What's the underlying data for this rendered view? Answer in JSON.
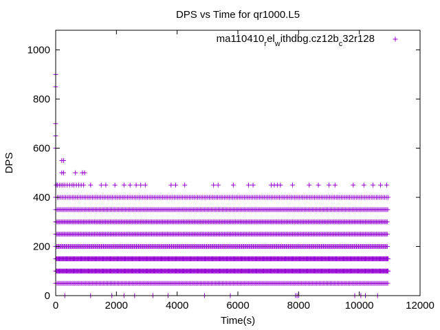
{
  "chart_data": {
    "type": "scatter",
    "title": "DPS vs Time for qr1000.L5",
    "xlabel": "Time(s)",
    "ylabel": "DPS",
    "xlim": [
      0,
      12000
    ],
    "ylim": [
      0,
      1080
    ],
    "x_ticks": [
      0,
      2000,
      4000,
      6000,
      8000,
      10000,
      12000
    ],
    "y_ticks": [
      0,
      200,
      400,
      600,
      800,
      1000
    ],
    "grid": false,
    "legend_position": "top-right",
    "marker": "+",
    "series": [
      {
        "name_parts": [
          {
            "text": "ma110410",
            "sub": false
          },
          {
            "text": "r",
            "sub": true
          },
          {
            "text": "el",
            "sub": false
          },
          {
            "text": "w",
            "sub": true
          },
          {
            "text": "ithdbg.cz12b",
            "sub": false
          },
          {
            "text": "c",
            "sub": true
          },
          {
            "text": "32r128",
            "sub": false
          }
        ],
        "color": "#9400d3",
        "dense_bands": [
          {
            "y": 50,
            "x_start": 0,
            "x_end": 10950,
            "step": 45
          },
          {
            "y": 100,
            "x_start": 0,
            "x_end": 10950,
            "step": 25
          },
          {
            "y": 150,
            "x_start": 0,
            "x_end": 10950,
            "step": 25
          },
          {
            "y": 200,
            "x_start": 0,
            "x_end": 10950,
            "step": 35
          },
          {
            "y": 250,
            "x_start": 0,
            "x_end": 10950,
            "step": 40
          },
          {
            "y": 300,
            "x_start": 0,
            "x_end": 10950,
            "step": 40
          },
          {
            "y": 350,
            "x_start": 0,
            "x_end": 10950,
            "step": 45
          },
          {
            "y": 400,
            "x_start": 0,
            "x_end": 10950,
            "step": 55
          }
        ],
        "points": [
          {
            "x": 20,
            "y": 450
          },
          {
            "x": 60,
            "y": 450
          },
          {
            "x": 120,
            "y": 450
          },
          {
            "x": 180,
            "y": 450
          },
          {
            "x": 240,
            "y": 450
          },
          {
            "x": 300,
            "y": 450
          },
          {
            "x": 380,
            "y": 450
          },
          {
            "x": 460,
            "y": 450
          },
          {
            "x": 540,
            "y": 450
          },
          {
            "x": 600,
            "y": 450
          },
          {
            "x": 680,
            "y": 450
          },
          {
            "x": 760,
            "y": 450
          },
          {
            "x": 840,
            "y": 450
          },
          {
            "x": 920,
            "y": 450
          },
          {
            "x": 1150,
            "y": 450
          },
          {
            "x": 1500,
            "y": 450
          },
          {
            "x": 1650,
            "y": 450
          },
          {
            "x": 1950,
            "y": 450
          },
          {
            "x": 2250,
            "y": 450
          },
          {
            "x": 2450,
            "y": 450
          },
          {
            "x": 2650,
            "y": 450
          },
          {
            "x": 2800,
            "y": 450
          },
          {
            "x": 2950,
            "y": 450
          },
          {
            "x": 3800,
            "y": 450
          },
          {
            "x": 3950,
            "y": 450
          },
          {
            "x": 4250,
            "y": 450
          },
          {
            "x": 5200,
            "y": 450
          },
          {
            "x": 5350,
            "y": 450
          },
          {
            "x": 5850,
            "y": 450
          },
          {
            "x": 6350,
            "y": 450
          },
          {
            "x": 6500,
            "y": 450
          },
          {
            "x": 7100,
            "y": 450
          },
          {
            "x": 7200,
            "y": 450
          },
          {
            "x": 7300,
            "y": 450
          },
          {
            "x": 7400,
            "y": 450
          },
          {
            "x": 7800,
            "y": 450
          },
          {
            "x": 8350,
            "y": 450
          },
          {
            "x": 8650,
            "y": 450
          },
          {
            "x": 9000,
            "y": 450
          },
          {
            "x": 9200,
            "y": 450
          },
          {
            "x": 9800,
            "y": 450
          },
          {
            "x": 10150,
            "y": 450
          },
          {
            "x": 10450,
            "y": 450
          },
          {
            "x": 10700,
            "y": 450
          },
          {
            "x": 10900,
            "y": 450
          },
          {
            "x": 200,
            "y": 500
          },
          {
            "x": 260,
            "y": 500
          },
          {
            "x": 650,
            "y": 500
          },
          {
            "x": 880,
            "y": 500
          },
          {
            "x": 950,
            "y": 500
          },
          {
            "x": 200,
            "y": 550
          },
          {
            "x": 260,
            "y": 550
          },
          {
            "x": 0,
            "y": 600
          },
          {
            "x": 0,
            "y": 650
          },
          {
            "x": 0,
            "y": 700
          },
          {
            "x": 0,
            "y": 850
          },
          {
            "x": 0,
            "y": 900
          },
          {
            "x": 300,
            "y": 0
          },
          {
            "x": 1150,
            "y": 0
          },
          {
            "x": 1850,
            "y": 0
          },
          {
            "x": 2250,
            "y": 0
          },
          {
            "x": 2600,
            "y": 0
          },
          {
            "x": 3200,
            "y": 0
          },
          {
            "x": 3700,
            "y": 0
          },
          {
            "x": 4900,
            "y": 0
          },
          {
            "x": 5750,
            "y": 0
          },
          {
            "x": 7900,
            "y": 0
          },
          {
            "x": 7950,
            "y": 0
          },
          {
            "x": 8000,
            "y": 0
          },
          {
            "x": 9850,
            "y": 0
          },
          {
            "x": 10050,
            "y": 0
          },
          {
            "x": 10200,
            "y": 0
          },
          {
            "x": 10600,
            "y": 0
          }
        ]
      }
    ]
  }
}
